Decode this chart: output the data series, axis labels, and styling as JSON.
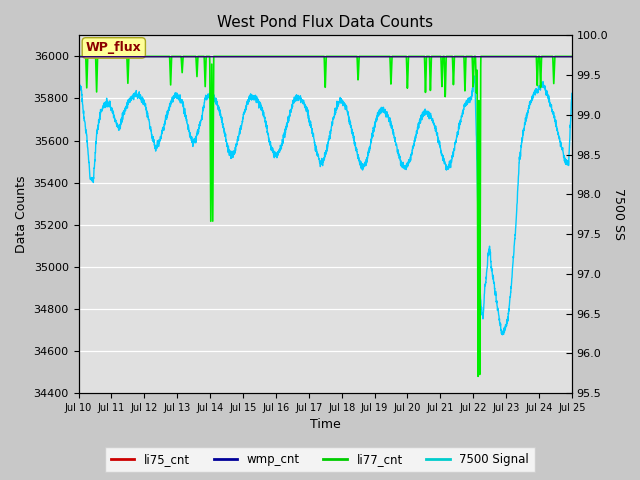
{
  "title": "West Pond Flux Data Counts",
  "xlabel": "Time",
  "ylabel_left": "Data Counts",
  "ylabel_right": "7500 SS",
  "wp_flux_label": "WP_flux",
  "ylim_left": [
    34400,
    36100
  ],
  "ylim_right": [
    95.5,
    100.0
  ],
  "fig_bg_color": "#c8c8c8",
  "plot_bg_color": "#e0e0e0",
  "legend_items": [
    "li75_cnt",
    "wmp_cnt",
    "li77_cnt",
    "7500 Signal"
  ],
  "legend_colors": [
    "#cc0000",
    "#000099",
    "#00cc00",
    "#00cccc"
  ],
  "line_color_li77": "#00ee00",
  "line_color_7500": "#00ccff",
  "annotation_box_color": "#ffff99",
  "annotation_text_color": "#8b0000",
  "x_ticks": [
    "Jul 10",
    "Jul 11",
    "Jul 12",
    "Jul 13",
    "Jul 14",
    "Jul 15",
    "Jul 16",
    "Jul 17",
    "Jul 18",
    "Jul 19",
    "Jul 20",
    "Jul 21",
    "Jul 22",
    "Jul 23",
    "Jul 24",
    "Jul 25"
  ],
  "x_tick_positions": [
    0,
    1,
    2,
    3,
    4,
    5,
    6,
    7,
    8,
    9,
    10,
    11,
    12,
    13,
    14,
    15
  ]
}
